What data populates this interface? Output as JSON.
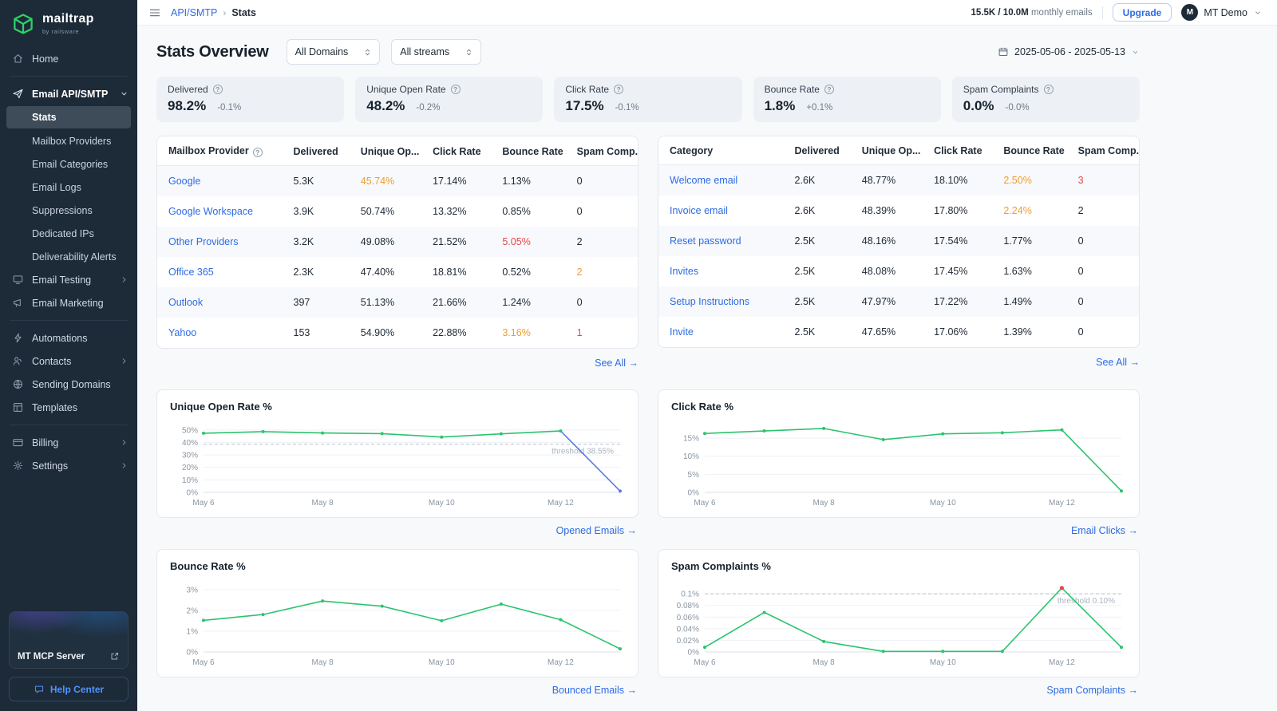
{
  "brand": {
    "name": "mailtrap",
    "tagline": "by railsware"
  },
  "colors": {
    "accent_blue": "#2e6be5",
    "chart_green": "#2bc46e",
    "chart_drop_blue": "#5b79e3",
    "warning_orange": "#ef9e2e",
    "danger_red": "#e5484d",
    "sidebar_bg": "#1d2a38"
  },
  "sidebar": {
    "nav": [
      {
        "label": "Home",
        "icon": "home"
      },
      {
        "divider": true
      },
      {
        "label": "Email API/SMTP",
        "icon": "send",
        "chevron": "down",
        "active_section": true
      },
      {
        "label": "Stats",
        "sub": true,
        "active": true
      },
      {
        "label": "Mailbox Providers",
        "sub": true
      },
      {
        "label": "Email Categories",
        "sub": true
      },
      {
        "label": "Email Logs",
        "sub": true
      },
      {
        "label": "Suppressions",
        "sub": true
      },
      {
        "label": "Dedicated IPs",
        "sub": true
      },
      {
        "label": "Deliverability Alerts",
        "sub": true
      },
      {
        "label": "Email Testing",
        "icon": "testing",
        "chevron": "right"
      },
      {
        "label": "Email Marketing",
        "icon": "marketing"
      },
      {
        "divider": true
      },
      {
        "label": "Automations",
        "icon": "automations"
      },
      {
        "label": "Contacts",
        "icon": "contacts",
        "chevron": "right"
      },
      {
        "label": "Sending Domains",
        "icon": "domains"
      },
      {
        "label": "Templates",
        "icon": "templates"
      },
      {
        "divider": true
      },
      {
        "label": "Billing",
        "icon": "billing",
        "chevron": "right"
      },
      {
        "label": "Settings",
        "icon": "settings",
        "chevron": "right"
      }
    ],
    "mcp_label": "MT MCP Server",
    "help_label": "Help Center"
  },
  "topbar": {
    "breadcrumb_section": "API/SMTP",
    "breadcrumb_separator": "›",
    "breadcrumb_page": "Stats",
    "usage_strong": "15.5K / 10.0M",
    "usage_muted": "monthly emails",
    "upgrade_label": "Upgrade",
    "avatar_letter": "M",
    "account_name": "MT Demo"
  },
  "header": {
    "title": "Stats Overview",
    "domains_filter": "All Domains",
    "streams_filter": "All streams",
    "date_range": "2025-05-06 - 2025-05-13"
  },
  "stat_cards": [
    {
      "label": "Delivered",
      "value": "98.2%",
      "delta": "-0.1%"
    },
    {
      "label": "Unique Open Rate",
      "value": "48.2%",
      "delta": "-0.2%"
    },
    {
      "label": "Click Rate",
      "value": "17.5%",
      "delta": "-0.1%"
    },
    {
      "label": "Bounce Rate",
      "value": "1.8%",
      "delta": "+0.1%"
    },
    {
      "label": "Spam Complaints",
      "value": "0.0%",
      "delta": "-0.0%"
    }
  ],
  "tables": [
    {
      "name": "mailbox-providers",
      "columns": [
        {
          "label": "Mailbox Provider",
          "help": true
        },
        {
          "label": "Delivered"
        },
        {
          "label": "Unique Op..."
        },
        {
          "label": "Click Rate"
        },
        {
          "label": "Bounce Rate"
        },
        {
          "label": "Spam Comp..."
        }
      ],
      "rows": [
        {
          "link": "Google",
          "cells": [
            {
              "v": "5.3K"
            },
            {
              "v": "45.74%",
              "tone": "orange"
            },
            {
              "v": "17.14%"
            },
            {
              "v": "1.13%"
            },
            {
              "v": "0"
            }
          ]
        },
        {
          "link": "Google Workspace",
          "cells": [
            {
              "v": "3.9K"
            },
            {
              "v": "50.74%"
            },
            {
              "v": "13.32%"
            },
            {
              "v": "0.85%"
            },
            {
              "v": "0"
            }
          ]
        },
        {
          "link": "Other Providers",
          "cells": [
            {
              "v": "3.2K"
            },
            {
              "v": "49.08%"
            },
            {
              "v": "21.52%"
            },
            {
              "v": "5.05%",
              "tone": "red"
            },
            {
              "v": "2"
            }
          ]
        },
        {
          "link": "Office 365",
          "cells": [
            {
              "v": "2.3K"
            },
            {
              "v": "47.40%"
            },
            {
              "v": "18.81%"
            },
            {
              "v": "0.52%"
            },
            {
              "v": "2",
              "tone": "orange"
            }
          ]
        },
        {
          "link": "Outlook",
          "cells": [
            {
              "v": "397"
            },
            {
              "v": "51.13%"
            },
            {
              "v": "21.66%"
            },
            {
              "v": "1.24%"
            },
            {
              "v": "0"
            }
          ]
        },
        {
          "link": "Yahoo",
          "cells": [
            {
              "v": "153"
            },
            {
              "v": "54.90%"
            },
            {
              "v": "22.88%"
            },
            {
              "v": "3.16%",
              "tone": "orange"
            },
            {
              "v": "1",
              "tone": "red"
            }
          ]
        }
      ],
      "see_all": "See All"
    },
    {
      "name": "email-categories",
      "columns": [
        {
          "label": "Category"
        },
        {
          "label": "Delivered"
        },
        {
          "label": "Unique Op..."
        },
        {
          "label": "Click Rate"
        },
        {
          "label": "Bounce Rate"
        },
        {
          "label": "Spam Comp..."
        }
      ],
      "rows": [
        {
          "link": "Welcome email",
          "cells": [
            {
              "v": "2.6K"
            },
            {
              "v": "48.77%"
            },
            {
              "v": "18.10%"
            },
            {
              "v": "2.50%",
              "tone": "orange"
            },
            {
              "v": "3",
              "tone": "red"
            }
          ]
        },
        {
          "link": "Invoice email",
          "cells": [
            {
              "v": "2.6K"
            },
            {
              "v": "48.39%"
            },
            {
              "v": "17.80%"
            },
            {
              "v": "2.24%",
              "tone": "orange"
            },
            {
              "v": "2"
            }
          ]
        },
        {
          "link": "Reset password",
          "cells": [
            {
              "v": "2.5K"
            },
            {
              "v": "48.16%"
            },
            {
              "v": "17.54%"
            },
            {
              "v": "1.77%"
            },
            {
              "v": "0"
            }
          ]
        },
        {
          "link": "Invites",
          "cells": [
            {
              "v": "2.5K"
            },
            {
              "v": "48.08%"
            },
            {
              "v": "17.45%"
            },
            {
              "v": "1.63%"
            },
            {
              "v": "0"
            }
          ]
        },
        {
          "link": "Setup Instructions",
          "cells": [
            {
              "v": "2.5K"
            },
            {
              "v": "47.97%"
            },
            {
              "v": "17.22%"
            },
            {
              "v": "1.49%"
            },
            {
              "v": "0"
            }
          ]
        },
        {
          "link": "Invite",
          "cells": [
            {
              "v": "2.5K"
            },
            {
              "v": "47.65%"
            },
            {
              "v": "17.06%"
            },
            {
              "v": "1.39%"
            },
            {
              "v": "0"
            }
          ]
        }
      ],
      "see_all": "See All"
    }
  ],
  "charts": [
    {
      "type": "line",
      "title": "Unique Open Rate %",
      "link_label": "Opened Emails",
      "x": [
        "May 6",
        "May 7",
        "May 8",
        "May 9",
        "May 10",
        "May 11",
        "May 12",
        "May 13"
      ],
      "x_tick_labels": [
        "May 6",
        "May 8",
        "May 10",
        "May 12"
      ],
      "x_tick_indices": [
        0,
        2,
        4,
        6
      ],
      "values": [
        47.4,
        48.7,
        47.6,
        47.1,
        44.3,
        46.9,
        49.2,
        1.0
      ],
      "yticks": [
        0,
        10,
        20,
        30,
        40,
        50
      ],
      "ytick_labels": [
        "0%",
        "10%",
        "20%",
        "30%",
        "40%",
        "50%"
      ],
      "ymax": 55,
      "threshold": 38.55,
      "threshold_label": "threshold 38.55%",
      "line_color": "#2bc46e",
      "tail_from": 6,
      "tail_color": "#5b79e3"
    },
    {
      "type": "line",
      "title": "Click Rate %",
      "link_label": "Email Clicks",
      "x": [
        "May 6",
        "May 7",
        "May 8",
        "May 9",
        "May 10",
        "May 11",
        "May 12",
        "May 13"
      ],
      "x_tick_labels": [
        "May 6",
        "May 8",
        "May 10",
        "May 12"
      ],
      "x_tick_indices": [
        0,
        2,
        4,
        6
      ],
      "values": [
        16.3,
        17.0,
        17.7,
        14.6,
        16.2,
        16.5,
        17.3,
        0.4
      ],
      "yticks": [
        0,
        5,
        10,
        15
      ],
      "ytick_labels": [
        "0%",
        "5%",
        "10%",
        "15%"
      ],
      "ymax": 19,
      "line_color": "#2bc46e"
    },
    {
      "type": "line",
      "title": "Bounce Rate %",
      "link_label": "Bounced Emails",
      "x": [
        "May 6",
        "May 7",
        "May 8",
        "May 9",
        "May 10",
        "May 11",
        "May 12",
        "May 13"
      ],
      "x_tick_labels": [
        "May 6",
        "May 8",
        "May 10",
        "May 12"
      ],
      "x_tick_indices": [
        0,
        2,
        4,
        6
      ],
      "values": [
        1.52,
        1.8,
        2.45,
        2.2,
        1.5,
        2.3,
        1.55,
        0.15
      ],
      "yticks": [
        0,
        1,
        2,
        3
      ],
      "ytick_labels": [
        "0%",
        "1%",
        "2%",
        "3%"
      ],
      "ymax": 3.3,
      "line_color": "#2bc46e"
    },
    {
      "type": "line",
      "title": "Spam Complaints %",
      "link_label": "Spam Complaints",
      "x": [
        "May 6",
        "May 7",
        "May 8",
        "May 9",
        "May 10",
        "May 11",
        "May 12",
        "May 13"
      ],
      "x_tick_labels": [
        "May 6",
        "May 8",
        "May 10",
        "May 12"
      ],
      "x_tick_indices": [
        0,
        2,
        4,
        6
      ],
      "values": [
        0.008,
        0.068,
        0.018,
        0.001,
        0.001,
        0.001,
        0.11,
        0.008
      ],
      "yticks": [
        0,
        0.02,
        0.04,
        0.06,
        0.08,
        0.1
      ],
      "ytick_labels": [
        "0%",
        "0.02%",
        "0.04%",
        "0.06%",
        "0.08%",
        "0.1%"
      ],
      "ymax": 0.118,
      "threshold": 0.1,
      "threshold_label": "threshold 0.10%",
      "line_color": "#2bc46e",
      "marker": {
        "index": 6,
        "color": "#e5484d"
      }
    }
  ]
}
